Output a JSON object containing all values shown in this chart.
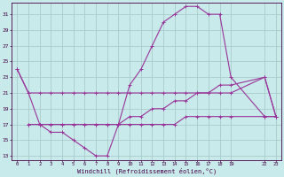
{
  "bg_color": "#c8eaea",
  "grid_color": "#aacccc",
  "line_color": "#993399",
  "xlim": [
    -0.5,
    23.5
  ],
  "ylim": [
    12.5,
    32.5
  ],
  "xlabel": "Windchill (Refroidissement éolien,°C)",
  "xticks": [
    0,
    1,
    2,
    3,
    4,
    5,
    6,
    7,
    8,
    9,
    10,
    11,
    12,
    13,
    14,
    15,
    16,
    17,
    18,
    19,
    22,
    23
  ],
  "yticks": [
    13,
    15,
    17,
    19,
    21,
    23,
    25,
    27,
    29,
    31
  ],
  "line1_x": [
    0,
    1,
    2,
    3,
    4,
    5,
    6,
    7,
    8,
    9,
    10,
    11,
    12,
    13,
    14,
    15,
    16,
    17,
    18,
    19,
    22,
    23
  ],
  "line1_y": [
    24,
    21,
    21,
    21,
    21,
    21,
    21,
    21,
    21,
    21,
    21,
    21,
    21,
    21,
    21,
    21,
    21,
    21,
    21,
    21,
    23,
    18
  ],
  "line2_x": [
    0,
    1,
    2,
    3,
    4,
    5,
    6,
    7,
    8,
    9,
    10,
    11,
    12,
    13,
    14,
    15,
    16,
    17,
    18,
    19,
    22,
    23
  ],
  "line2_y": [
    24,
    21,
    17,
    16,
    16,
    15,
    14,
    13,
    13,
    17,
    22,
    24,
    27,
    30,
    31,
    32,
    32,
    31,
    31,
    23,
    18,
    18
  ],
  "line3_x": [
    1,
    2,
    3,
    4,
    5,
    6,
    7,
    8,
    9,
    10,
    11,
    12,
    13,
    14,
    15,
    16,
    17,
    18,
    19,
    22,
    23
  ],
  "line3_y": [
    17,
    17,
    17,
    17,
    17,
    17,
    17,
    17,
    17,
    18,
    18,
    19,
    19,
    20,
    20,
    21,
    21,
    22,
    22,
    23,
    18
  ],
  "line4_x": [
    1,
    2,
    3,
    4,
    5,
    6,
    7,
    8,
    9,
    10,
    11,
    12,
    13,
    14,
    15,
    16,
    17,
    18,
    19,
    22,
    23
  ],
  "line4_y": [
    17,
    17,
    17,
    17,
    17,
    17,
    17,
    17,
    17,
    17,
    17,
    17,
    17,
    17,
    18,
    18,
    18,
    18,
    18,
    18,
    18
  ]
}
